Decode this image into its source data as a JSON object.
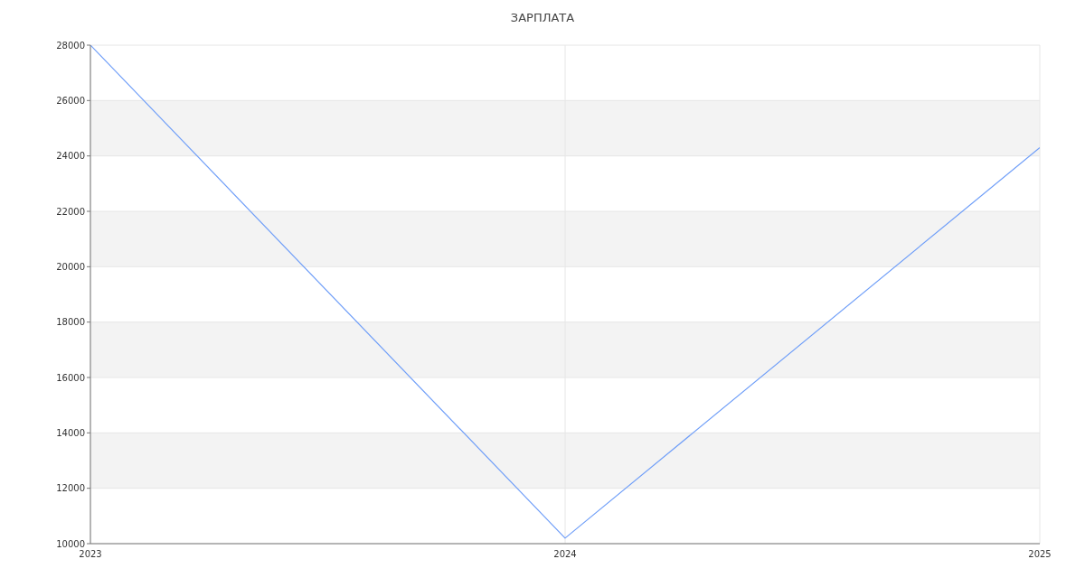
{
  "chart_data": {
    "type": "line",
    "title": "ЗАРПЛАТА",
    "x": [
      2023,
      2024,
      2025
    ],
    "series": [
      {
        "color": "#6f9ef8",
        "values": [
          28000,
          10200,
          24300
        ]
      }
    ],
    "xlim": [
      2023,
      2025
    ],
    "xticks": [
      2023,
      2024,
      2025
    ],
    "ylim": [
      10000,
      28000
    ],
    "yticks": [
      10000,
      12000,
      14000,
      16000,
      18000,
      20000,
      22000,
      24000,
      26000,
      28000
    ],
    "grid": true,
    "marker": "none",
    "line_style": "solid",
    "legend": false
  }
}
